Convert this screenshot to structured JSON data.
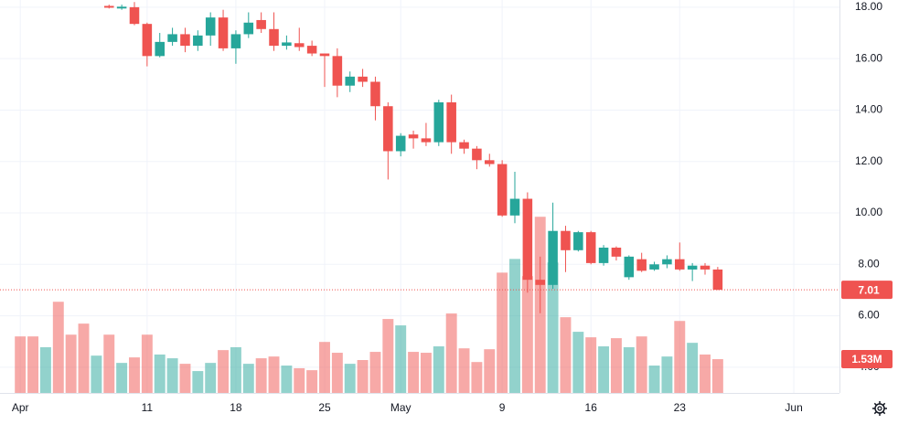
{
  "chart_data": {
    "type": "candlestick",
    "categories": [
      "Apr 1",
      "Apr 2",
      "Apr 3",
      "Apr 4",
      "Apr 5",
      "Apr 6",
      "Apr 7",
      "Apr 8",
      "Apr 9",
      "Apr 10",
      "Apr 11",
      "Apr 12",
      "Apr 13",
      "Apr 14",
      "Apr 15",
      "Apr 16",
      "Apr 17",
      "Apr 18",
      "Apr 19",
      "Apr 20",
      "Apr 21",
      "Apr 22",
      "Apr 23",
      "Apr 24",
      "Apr 25",
      "Apr 26",
      "Apr 27",
      "Apr 28",
      "Apr 29",
      "Apr 30",
      "May 1",
      "May 2",
      "May 3",
      "May 4",
      "May 5",
      "May 6",
      "May 7",
      "May 8",
      "May 9",
      "May 10",
      "May 11",
      "May 12",
      "May 13",
      "May 14",
      "May 15",
      "May 16",
      "May 17",
      "May 18",
      "May 19",
      "May 20",
      "May 21",
      "May 22",
      "May 23",
      "May 24",
      "May 25",
      "May 26"
    ],
    "open": [
      null,
      null,
      null,
      null,
      null,
      null,
      null,
      18.05,
      17.95,
      18.0,
      17.35,
      16.1,
      16.65,
      16.95,
      16.5,
      16.9,
      17.6,
      16.4,
      16.95,
      17.5,
      17.15,
      16.5,
      16.6,
      16.5,
      16.2,
      16.1,
      14.95,
      15.3,
      15.1,
      14.15,
      12.4,
      13.05,
      12.9,
      12.75,
      14.3,
      12.75,
      12.5,
      12.05,
      11.9,
      9.9,
      10.55,
      7.4,
      7.2,
      9.3,
      8.55,
      9.25,
      8.05,
      8.65,
      7.5,
      8.2,
      7.8,
      8.0,
      8.2,
      7.8,
      7.95,
      7.8
    ],
    "high": [
      null,
      null,
      null,
      null,
      null,
      null,
      null,
      18.1,
      18.1,
      18.2,
      17.4,
      17.0,
      17.2,
      17.2,
      17.1,
      17.8,
      17.9,
      17.1,
      17.8,
      17.8,
      17.8,
      16.9,
      17.2,
      16.7,
      16.2,
      16.4,
      15.5,
      15.6,
      15.3,
      14.3,
      13.1,
      13.2,
      13.5,
      14.4,
      14.6,
      12.85,
      12.6,
      12.3,
      12.05,
      11.6,
      10.8,
      8.3,
      10.4,
      9.5,
      9.3,
      9.3,
      8.75,
      8.7,
      8.35,
      8.45,
      8.1,
      8.35,
      8.85,
      8.05,
      8.05,
      7.9
    ],
    "low": [
      null,
      null,
      null,
      null,
      null,
      null,
      null,
      17.95,
      17.9,
      17.3,
      15.7,
      16.05,
      16.5,
      16.25,
      16.3,
      16.5,
      16.3,
      15.8,
      16.8,
      17.0,
      16.3,
      16.35,
      16.3,
      16.1,
      14.9,
      14.5,
      14.7,
      14.9,
      13.6,
      11.3,
      12.2,
      12.5,
      12.6,
      12.6,
      12.3,
      12.3,
      11.7,
      11.8,
      9.85,
      9.6,
      6.9,
      6.1,
      7.05,
      7.7,
      8.5,
      8.0,
      7.95,
      8.15,
      7.4,
      7.7,
      7.75,
      7.85,
      7.75,
      7.35,
      7.6,
      7.0
    ],
    "close": [
      null,
      null,
      null,
      null,
      null,
      null,
      null,
      17.98,
      18.02,
      17.35,
      16.1,
      16.65,
      16.95,
      16.5,
      16.9,
      17.6,
      16.4,
      16.95,
      17.4,
      17.15,
      16.5,
      16.63,
      16.45,
      16.2,
      16.1,
      14.95,
      15.3,
      15.1,
      14.15,
      12.4,
      13.0,
      12.9,
      12.75,
      14.3,
      12.75,
      12.5,
      12.05,
      11.9,
      9.9,
      10.55,
      7.4,
      7.2,
      9.3,
      8.55,
      9.25,
      8.05,
      8.65,
      8.3,
      8.3,
      7.75,
      8.0,
      8.2,
      7.8,
      7.95,
      7.8,
      7.01
    ],
    "up_color": "#26a69a",
    "down_color": "#ef5350",
    "volume": {
      "values": [
        2.56,
        2.56,
        2.07,
        4.13,
        2.64,
        3.14,
        1.69,
        2.64,
        1.36,
        1.61,
        2.64,
        1.74,
        1.57,
        1.32,
        0.99,
        1.36,
        1.94,
        2.07,
        1.32,
        1.57,
        1.65,
        1.24,
        1.12,
        1.03,
        2.31,
        1.82,
        1.32,
        1.49,
        1.86,
        3.35,
        3.06,
        1.86,
        1.82,
        2.11,
        3.6,
        2.02,
        1.4,
        1.98,
        5.45,
        6.07,
        5.29,
        7.98,
        5.91,
        3.43,
        2.77,
        2.52,
        2.11,
        2.48,
        2.07,
        2.56,
        1.24,
        1.65,
        3.26,
        2.27,
        1.74,
        1.53
      ],
      "directions": [
        "down",
        "down",
        "up",
        "down",
        "down",
        "down",
        "up",
        "down",
        "up",
        "down",
        "down",
        "up",
        "up",
        "down",
        "up",
        "up",
        "down",
        "up",
        "up",
        "down",
        "down",
        "up",
        "down",
        "down",
        "down",
        "down",
        "up",
        "down",
        "down",
        "down",
        "up",
        "down",
        "down",
        "up",
        "down",
        "down",
        "down",
        "down",
        "down",
        "up",
        "down",
        "down",
        "up",
        "down",
        "up",
        "down",
        "up",
        "down",
        "up",
        "down",
        "up",
        "up",
        "down",
        "up",
        "down",
        "down"
      ],
      "ylim": [
        0,
        17.8
      ],
      "last_label": {
        "value": 1.53,
        "label": "1.53M"
      }
    },
    "last_price": 7.01,
    "xlim": [
      -1.6,
      64.6
    ],
    "xticks": [
      {
        "value": 0,
        "label": "Apr"
      },
      {
        "value": 10,
        "label": "11"
      },
      {
        "value": 17,
        "label": "18"
      },
      {
        "value": 24,
        "label": "25"
      },
      {
        "value": 30,
        "label": "May"
      },
      {
        "value": 38,
        "label": "9"
      },
      {
        "value": 45,
        "label": "16"
      },
      {
        "value": 52,
        "label": "23"
      },
      {
        "value": 61,
        "label": "Jun"
      }
    ],
    "ylim": [
      3.0,
      18.28
    ],
    "yticks": [
      {
        "value": 4,
        "label": "4.00"
      },
      {
        "value": 6,
        "label": "6.00"
      },
      {
        "value": 8,
        "label": "8.00"
      },
      {
        "value": 10,
        "label": "10.00"
      },
      {
        "value": 12,
        "label": "12.00"
      },
      {
        "value": 14,
        "label": "14.00"
      },
      {
        "value": 16,
        "label": "16.00"
      },
      {
        "value": 18,
        "label": "18.00"
      }
    ],
    "grid": true
  }
}
